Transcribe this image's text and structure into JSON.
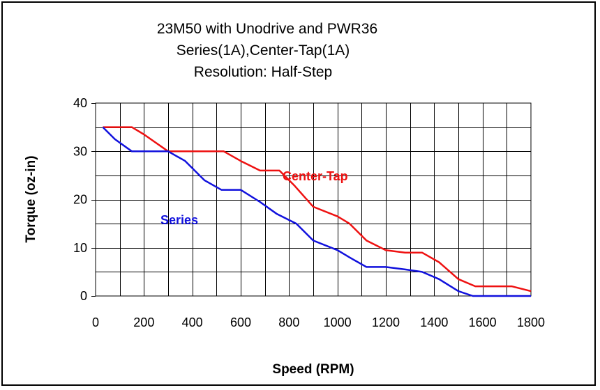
{
  "chart_data": {
    "type": "line",
    "title": [
      "23M50 with Unodrive and PWR36",
      "Series(1A),Center-Tap(1A)",
      "Resolution: Half-Step"
    ],
    "xlabel": "Speed (RPM)",
    "ylabel": "Torque (oz-in)",
    "xlim": [
      0,
      1800
    ],
    "ylim": [
      0,
      40
    ],
    "xticks": [
      0,
      200,
      400,
      600,
      800,
      1000,
      1200,
      1400,
      1600,
      1800
    ],
    "yticks": [
      0,
      10,
      20,
      30,
      40
    ],
    "grid": true,
    "series": [
      {
        "name": "Center-Tap",
        "color": "#ee1111",
        "points": [
          [
            30,
            35
          ],
          [
            150,
            35
          ],
          [
            200,
            33.5
          ],
          [
            300,
            30
          ],
          [
            530,
            30
          ],
          [
            600,
            28
          ],
          [
            680,
            26
          ],
          [
            760,
            26
          ],
          [
            820,
            23
          ],
          [
            900,
            18.5
          ],
          [
            1000,
            16.5
          ],
          [
            1050,
            15
          ],
          [
            1120,
            11.5
          ],
          [
            1200,
            9.5
          ],
          [
            1280,
            9
          ],
          [
            1350,
            9
          ],
          [
            1420,
            7
          ],
          [
            1500,
            3.5
          ],
          [
            1570,
            2
          ],
          [
            1720,
            2
          ],
          [
            1800,
            1
          ]
        ]
      },
      {
        "name": "Series",
        "color": "#1111dd",
        "points": [
          [
            30,
            35
          ],
          [
            80,
            32.5
          ],
          [
            150,
            30
          ],
          [
            300,
            30
          ],
          [
            370,
            28
          ],
          [
            450,
            24
          ],
          [
            520,
            22
          ],
          [
            600,
            22
          ],
          [
            680,
            19.5
          ],
          [
            750,
            17
          ],
          [
            830,
            15
          ],
          [
            900,
            11.5
          ],
          [
            1000,
            9.5
          ],
          [
            1050,
            8
          ],
          [
            1120,
            6
          ],
          [
            1200,
            6
          ],
          [
            1280,
            5.5
          ],
          [
            1350,
            5
          ],
          [
            1420,
            3.5
          ],
          [
            1500,
            1
          ],
          [
            1560,
            0
          ],
          [
            1800,
            0
          ]
        ]
      }
    ],
    "annotations": [
      {
        "text": "Center-Tap",
        "color": "#ee1111"
      },
      {
        "text": "Series",
        "color": "#1111dd"
      }
    ]
  }
}
